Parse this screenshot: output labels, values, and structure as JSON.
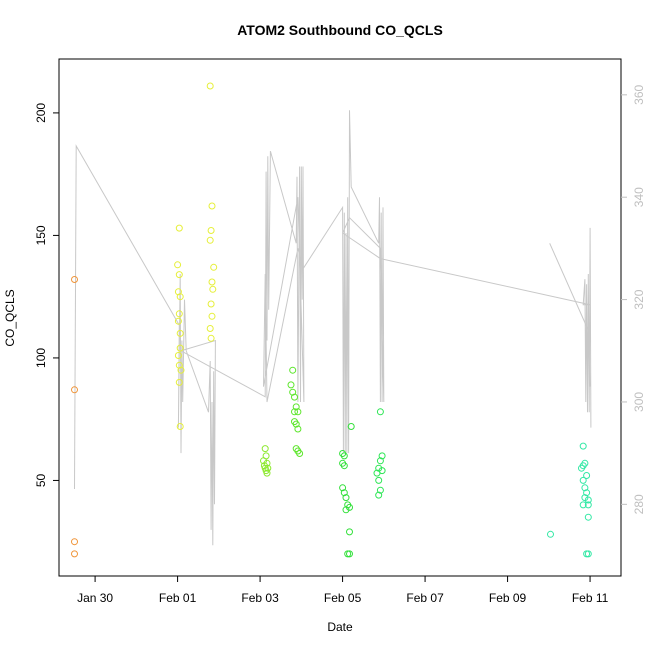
{
  "chart_data": {
    "type": "scatter",
    "title": "ATOM2 Southbound CO_QCLS",
    "xlabel": "Date",
    "ylabel": "CO_QCLS",
    "x_tick_labels": [
      "Jan 30",
      "Feb 01",
      "Feb 03",
      "Feb 05",
      "Feb 07",
      "Feb 09",
      "Feb 11"
    ],
    "y_tick_labels": [
      "50",
      "100",
      "150",
      "200"
    ],
    "y2_tick_labels": [
      "280",
      "300",
      "320",
      "340",
      "360"
    ],
    "xlim": [
      "2017-01-29 03:00",
      "2017-02-11 18:00"
    ],
    "ylim": [
      11,
      222
    ],
    "y2lim": [
      266,
      367
    ],
    "grid": false,
    "secondary_line_color": "#c8c8c8",
    "point_series": [
      {
        "color": "#f0953a",
        "points": [
          [
            "2017-01-29 12:00",
            132
          ],
          [
            "2017-01-29 12:00",
            87
          ],
          [
            "2017-01-29 12:00",
            25
          ],
          [
            "2017-01-29 12:00",
            20
          ]
        ]
      },
      {
        "color": "#e6ef3a",
        "points": [
          [
            "2017-02-01 00:00",
            138
          ],
          [
            "2017-02-01 00:30",
            127
          ],
          [
            "2017-02-01 01:00",
            153
          ],
          [
            "2017-02-01 01:00",
            134
          ],
          [
            "2017-02-01 01:30",
            125
          ],
          [
            "2017-02-01 01:00",
            118
          ],
          [
            "2017-02-01 00:30",
            115
          ],
          [
            "2017-02-01 01:30",
            110
          ],
          [
            "2017-02-01 01:30",
            104
          ],
          [
            "2017-02-01 00:30",
            101
          ],
          [
            "2017-02-01 01:00",
            97
          ],
          [
            "2017-02-01 02:00",
            95
          ],
          [
            "2017-02-01 01:00",
            90
          ],
          [
            "2017-02-01 01:30",
            72
          ]
        ]
      },
      {
        "color": "#e6ef3a",
        "points": [
          [
            "2017-02-01 19:00",
            211
          ],
          [
            "2017-02-01 20:00",
            162
          ],
          [
            "2017-02-01 19:30",
            152
          ],
          [
            "2017-02-01 19:00",
            148
          ],
          [
            "2017-02-01 21:00",
            137
          ],
          [
            "2017-02-01 20:00",
            131
          ],
          [
            "2017-02-01 20:30",
            128
          ],
          [
            "2017-02-01 19:30",
            122
          ],
          [
            "2017-02-01 20:00",
            117
          ],
          [
            "2017-02-01 19:00",
            112
          ],
          [
            "2017-02-01 19:30",
            108
          ]
        ]
      },
      {
        "color": "#8de92f",
        "points": [
          [
            "2017-02-03 03:00",
            63
          ],
          [
            "2017-02-03 03:30",
            60
          ],
          [
            "2017-02-03 02:00",
            58
          ],
          [
            "2017-02-03 04:00",
            57
          ],
          [
            "2017-02-03 02:30",
            56
          ],
          [
            "2017-02-03 03:00",
            55
          ],
          [
            "2017-02-03 04:30",
            55
          ],
          [
            "2017-02-03 03:30",
            54
          ],
          [
            "2017-02-03 04:00",
            53
          ]
        ]
      },
      {
        "color": "#5de62c",
        "points": [
          [
            "2017-02-03 19:00",
            95
          ],
          [
            "2017-02-03 18:00",
            89
          ],
          [
            "2017-02-03 19:00",
            86
          ],
          [
            "2017-02-03 20:00",
            84
          ],
          [
            "2017-02-03 21:00",
            80
          ],
          [
            "2017-02-03 20:00",
            78
          ],
          [
            "2017-02-03 22:00",
            78
          ],
          [
            "2017-02-03 20:00",
            74
          ],
          [
            "2017-02-03 21:00",
            73
          ],
          [
            "2017-02-03 22:00",
            71
          ],
          [
            "2017-02-03 21:00",
            63
          ],
          [
            "2017-02-03 22:00",
            62
          ],
          [
            "2017-02-03 23:00",
            61
          ]
        ]
      },
      {
        "color": "#32e03a",
        "points": [
          [
            "2017-02-05 00:00",
            61
          ],
          [
            "2017-02-05 01:00",
            60
          ],
          [
            "2017-02-05 00:00",
            57
          ],
          [
            "2017-02-05 01:00",
            56
          ],
          [
            "2017-02-05 00:00",
            47
          ],
          [
            "2017-02-05 01:00",
            45
          ],
          [
            "2017-02-05 02:00",
            43
          ],
          [
            "2017-02-05 03:00",
            40
          ],
          [
            "2017-02-05 02:00",
            38
          ],
          [
            "2017-02-05 04:00",
            39
          ],
          [
            "2017-02-05 05:00",
            72
          ],
          [
            "2017-02-05 04:00",
            29
          ],
          [
            "2017-02-05 03:00",
            20
          ],
          [
            "2017-02-05 04:00",
            20
          ]
        ]
      },
      {
        "color": "#2ee656",
        "points": [
          [
            "2017-02-05 22:00",
            78
          ],
          [
            "2017-02-05 23:00",
            60
          ],
          [
            "2017-02-05 22:00",
            58
          ],
          [
            "2017-02-05 21:00",
            55
          ],
          [
            "2017-02-05 23:00",
            54
          ],
          [
            "2017-02-05 20:00",
            53
          ],
          [
            "2017-02-05 21:00",
            50
          ],
          [
            "2017-02-05 22:00",
            46
          ],
          [
            "2017-02-05 21:00",
            44
          ]
        ]
      },
      {
        "color": "#33e8a5",
        "points": [
          [
            "2017-02-10 01:00",
            28
          ],
          [
            "2017-02-10 20:00",
            64
          ],
          [
            "2017-02-10 21:00",
            57
          ],
          [
            "2017-02-10 20:00",
            56
          ],
          [
            "2017-02-10 19:00",
            55
          ],
          [
            "2017-02-10 22:00",
            52
          ],
          [
            "2017-02-10 20:00",
            50
          ],
          [
            "2017-02-10 21:00",
            47
          ],
          [
            "2017-02-10 22:00",
            45
          ],
          [
            "2017-02-10 21:00",
            43
          ],
          [
            "2017-02-10 23:00",
            42
          ],
          [
            "2017-02-10 20:00",
            40
          ],
          [
            "2017-02-10 23:00",
            40
          ],
          [
            "2017-02-10 23:00",
            35
          ],
          [
            "2017-02-10 23:00",
            20
          ],
          [
            "2017-02-10 22:00",
            20
          ]
        ]
      }
    ],
    "secondary_line": [
      [
        "2017-01-29 12:00",
        283
      ],
      [
        "2017-01-29 13:00",
        350
      ],
      [
        "2017-02-01 01:00",
        315
      ],
      [
        "2017-02-01 00:30",
        295
      ],
      [
        "2017-02-01 01:30",
        325
      ],
      [
        "2017-02-01 02:00",
        290
      ],
      [
        "2017-02-01 02:30",
        312
      ],
      [
        "2017-02-01 03:00",
        300
      ],
      [
        "2017-02-01 04:00",
        320
      ],
      [
        "2017-02-01 05:00",
        310
      ],
      [
        "2017-02-01 18:00",
        298
      ],
      [
        "2017-02-01 19:00",
        308
      ],
      [
        "2017-02-01 19:30",
        275
      ],
      [
        "2017-02-01 20:00",
        300
      ],
      [
        "2017-02-01 20:30",
        272
      ],
      [
        "2017-02-01 21:00",
        306
      ],
      [
        "2017-02-01 21:30",
        280
      ],
      [
        "2017-02-01 22:00",
        312
      ],
      [
        "2017-02-01 02:00",
        310
      ],
      [
        "2017-02-03 03:00",
        301
      ],
      [
        "2017-02-03 03:30",
        345
      ],
      [
        "2017-02-03 04:00",
        312
      ],
      [
        "2017-02-03 04:30",
        348
      ],
      [
        "2017-02-03 05:00",
        318
      ],
      [
        "2017-02-03 06:00",
        349
      ],
      [
        "2017-02-03 21:00",
        331
      ],
      [
        "2017-02-03 21:30",
        344
      ],
      [
        "2017-02-03 22:00",
        300
      ],
      [
        "2017-02-03 23:00",
        346
      ],
      [
        "2017-02-03 23:30",
        300
      ],
      [
        "2017-02-04 00:00",
        346
      ],
      [
        "2017-02-04 00:30",
        320
      ],
      [
        "2017-02-04 01:00",
        346
      ],
      [
        "2017-02-04 01:30",
        300
      ],
      [
        "2017-02-03 22:00",
        340
      ],
      [
        "2017-02-03 02:00",
        303
      ],
      [
        "2017-02-03 03:00",
        325
      ],
      [
        "2017-02-03 04:00",
        300
      ],
      [
        "2017-02-03 22:00",
        330
      ],
      [
        "2017-02-04 01:00",
        326
      ],
      [
        "2017-02-05 00:00",
        338
      ],
      [
        "2017-02-05 00:30",
        290
      ],
      [
        "2017-02-05 01:00",
        337
      ],
      [
        "2017-02-05 01:30",
        290
      ],
      [
        "2017-02-05 02:00",
        333
      ],
      [
        "2017-02-05 02:30",
        290
      ],
      [
        "2017-02-05 03:00",
        340
      ],
      [
        "2017-02-05 03:30",
        290
      ],
      [
        "2017-02-05 04:00",
        357
      ],
      [
        "2017-02-05 05:00",
        342
      ],
      [
        "2017-02-05 21:00",
        331
      ],
      [
        "2017-02-05 21:30",
        340
      ],
      [
        "2017-02-05 22:00",
        300
      ],
      [
        "2017-02-05 22:30",
        337
      ],
      [
        "2017-02-05 23:00",
        300
      ],
      [
        "2017-02-05 23:30",
        338
      ],
      [
        "2017-02-06 00:00",
        300
      ],
      [
        "2017-02-05 22:00",
        330
      ],
      [
        "2017-02-05 04:00",
        336
      ],
      [
        "2017-02-05 00:00",
        333
      ],
      [
        "2017-02-05 22:00",
        328
      ],
      [
        "2017-02-11 00:00",
        319
      ],
      [
        "2017-02-10 20:00",
        319
      ],
      [
        "2017-02-10 21:00",
        324
      ],
      [
        "2017-02-10 21:30",
        300
      ],
      [
        "2017-02-10 22:00",
        323
      ],
      [
        "2017-02-10 22:30",
        298
      ],
      [
        "2017-02-10 23:00",
        325
      ],
      [
        "2017-02-10 23:30",
        298
      ],
      [
        "2017-02-11 00:00",
        334
      ],
      [
        "2017-02-11 00:30",
        295
      ]
    ],
    "secondary_line_b": [
      [
        "2017-02-10 00:30",
        331
      ],
      [
        "2017-02-10 23:00",
        314
      ],
      [
        "2017-02-11 00:00",
        303
      ]
    ]
  }
}
